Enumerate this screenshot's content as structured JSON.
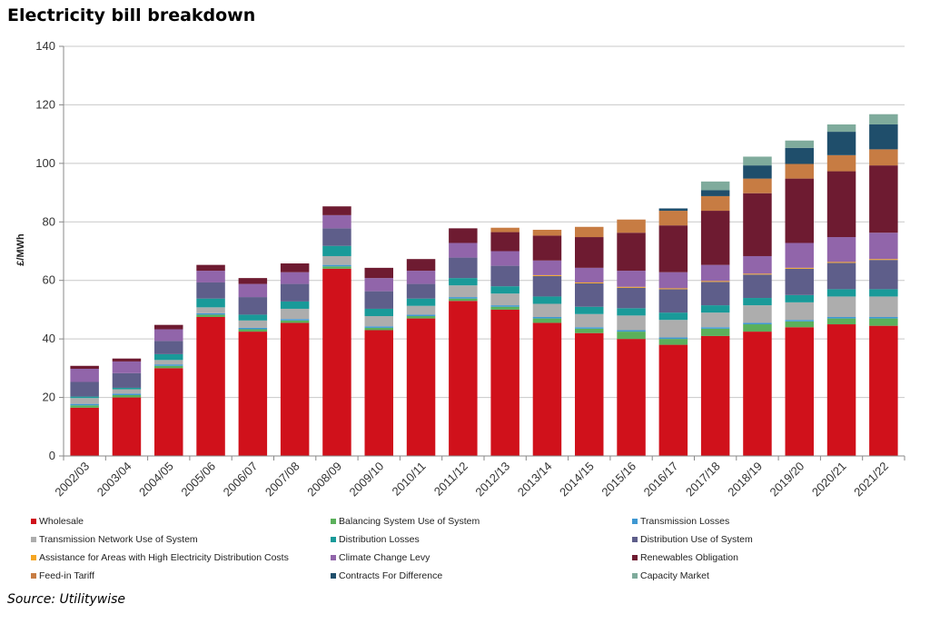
{
  "chart_data": {
    "type": "bar",
    "stacked": true,
    "title": "Electricity bill breakdown",
    "ylabel": "£/MWh",
    "xlabel": "",
    "ylim": [
      0,
      140
    ],
    "yticks": [
      0,
      20,
      40,
      60,
      80,
      100,
      120,
      140
    ],
    "grid": true,
    "legend_position": "bottom",
    "source": "Source: Utilitywise",
    "categories": [
      "2002/03",
      "2003/04",
      "2004/05",
      "2005/06",
      "2006/07",
      "2007/08",
      "2008/09",
      "2009/10",
      "2010/11",
      "2011/12",
      "2012/13",
      "2013/14",
      "2014/15",
      "2015/16",
      "2016/17",
      "2017/18",
      "2018/19",
      "2019/20",
      "2020/21",
      "2021/22"
    ],
    "series": [
      {
        "name": "Wholesale",
        "color": "#d0111b",
        "values": [
          16.5,
          20,
          30,
          47.5,
          42.5,
          45.5,
          64,
          43,
          47,
          53,
          50,
          45.5,
          42,
          40,
          38,
          41,
          42.5,
          44,
          45,
          44.5
        ]
      },
      {
        "name": "Balancing System Use of System",
        "color": "#5bb05b",
        "values": [
          0.8,
          0.8,
          0.8,
          0.8,
          0.8,
          0.8,
          0.8,
          0.8,
          0.8,
          0.8,
          1,
          1.5,
          1.5,
          2.5,
          2,
          2.5,
          2.5,
          2,
          2,
          2.5
        ]
      },
      {
        "name": "Transmission Losses",
        "color": "#3f98d2",
        "values": [
          0.5,
          0.5,
          0.5,
          0.5,
          0.5,
          0.5,
          0.5,
          0.5,
          0.5,
          0.5,
          0.5,
          0.5,
          0.5,
          0.5,
          0.5,
          0.5,
          0.5,
          0.5,
          0.5,
          0.5
        ]
      },
      {
        "name": "Transmission Network Use of System",
        "color": "#adadad",
        "values": [
          2,
          1.5,
          1.5,
          2,
          2.5,
          3.5,
          3,
          3.5,
          3,
          4,
          4,
          4.5,
          4.5,
          5,
          6,
          5,
          6,
          6,
          7,
          7
        ]
      },
      {
        "name": "Distribution Losses",
        "color": "#199a99",
        "values": [
          0.5,
          0.5,
          2,
          3,
          2,
          2.5,
          3.5,
          2.5,
          2.5,
          2.5,
          2.5,
          2.5,
          2.5,
          2.5,
          2.5,
          2.5,
          2.5,
          2.5,
          2.5,
          2.5
        ]
      },
      {
        "name": "Distribution Use of System",
        "color": "#5e5e8a",
        "values": [
          5,
          5,
          4.5,
          5.5,
          6,
          6,
          6,
          6,
          5,
          7,
          7,
          7,
          8,
          7,
          8,
          8,
          8,
          9,
          9,
          10
        ]
      },
      {
        "name": "Assistance for Areas with High Electricity Distribution Costs",
        "color": "#f5a623",
        "values": [
          0,
          0,
          0,
          0,
          0,
          0,
          0,
          0,
          0,
          0,
          0,
          0.3,
          0.3,
          0.3,
          0.3,
          0.3,
          0.3,
          0.3,
          0.3,
          0.3
        ]
      },
      {
        "name": "Climate Change Levy",
        "color": "#9165aa",
        "values": [
          4.5,
          4,
          4,
          4,
          4.5,
          4,
          4.5,
          4.5,
          4.5,
          5,
          5,
          5,
          5,
          5.5,
          5.5,
          5.5,
          6,
          8.5,
          8.5,
          9
        ]
      },
      {
        "name": "Renewables Obligation",
        "color": "#6e1b31",
        "values": [
          1,
          1,
          1.5,
          2,
          2,
          3,
          3,
          3.5,
          4,
          5,
          6.5,
          8.5,
          10.5,
          13,
          16,
          18.5,
          21.5,
          22,
          22.5,
          23
        ]
      },
      {
        "name": "Feed-in Tariff",
        "color": "#c77c43",
        "values": [
          0,
          0,
          0,
          0,
          0,
          0,
          0,
          0,
          0,
          0,
          1.5,
          2,
          3.5,
          4.5,
          5,
          5,
          5,
          5,
          5.5,
          5.5
        ]
      },
      {
        "name": "Contracts For Difference",
        "color": "#1f4e6b",
        "values": [
          0,
          0,
          0,
          0,
          0,
          0,
          0,
          0,
          0,
          0,
          0,
          0,
          0,
          0,
          0.8,
          2,
          4.5,
          5.5,
          8,
          8.5
        ]
      },
      {
        "name": "Capacity Market",
        "color": "#7fab9c",
        "values": [
          0,
          0,
          0,
          0,
          0,
          0,
          0,
          0,
          0,
          0,
          0,
          0,
          0,
          0,
          0,
          3,
          3,
          2.5,
          2.5,
          3.5
        ]
      }
    ]
  }
}
